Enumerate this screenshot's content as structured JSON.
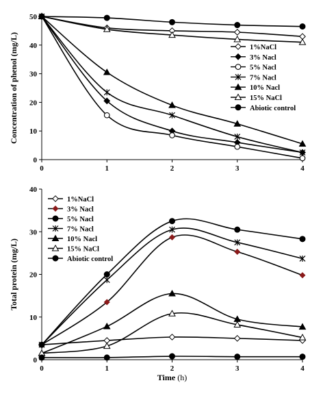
{
  "chart_data": [
    {
      "type": "line",
      "ylabel": "Concentration of phenol (mg/L)",
      "xlabel": "",
      "xlim": [
        0,
        4
      ],
      "ylim": [
        0,
        50
      ],
      "xticks": [
        "0",
        "1",
        "2",
        "3",
        "4"
      ],
      "yticks": [
        "0",
        "10",
        "20",
        "30",
        "40",
        "50"
      ],
      "grid": false,
      "legend_position": "right",
      "series": [
        {
          "name": "1%NaCl",
          "marker": "diamond-open",
          "x": [
            0,
            1,
            2,
            3,
            4
          ],
          "y": [
            50,
            46,
            45,
            44.5,
            43
          ]
        },
        {
          "name": "3% Nacl",
          "marker": "diamond-filled",
          "x": [
            0,
            1,
            2,
            3,
            4
          ],
          "y": [
            50,
            20.5,
            10,
            6,
            2.5
          ]
        },
        {
          "name": "5% Nacl",
          "marker": "circle-open",
          "x": [
            0,
            1,
            2,
            3,
            4
          ],
          "y": [
            50,
            15.5,
            8.5,
            4.5,
            0.5
          ]
        },
        {
          "name": "7% Nacl",
          "marker": "star",
          "x": [
            0,
            1,
            2,
            3,
            4
          ],
          "y": [
            50,
            23.5,
            15.5,
            8,
            2.5
          ]
        },
        {
          "name": "10% Nacl",
          "marker": "triangle-filled",
          "x": [
            0,
            1,
            2,
            3,
            4
          ],
          "y": [
            50,
            30.5,
            19,
            12.5,
            5.5
          ]
        },
        {
          "name": "15% NaCl",
          "marker": "triangle-open",
          "x": [
            0,
            1,
            2,
            3,
            4
          ],
          "y": [
            50,
            45.5,
            43.5,
            42,
            41
          ]
        },
        {
          "name": "Abiotic control",
          "marker": "circle-filled",
          "x": [
            0,
            1,
            2,
            3,
            4
          ],
          "y": [
            50,
            49.5,
            48,
            47,
            46.5
          ]
        }
      ]
    },
    {
      "type": "line",
      "ylabel": "Total protein (mg/L)",
      "xlabel_bold": "Time",
      "xlabel_unit": " (h)",
      "xlim": [
        0,
        4
      ],
      "ylim": [
        0,
        40
      ],
      "xticks": [
        "0",
        "1",
        "2",
        "3",
        "4"
      ],
      "yticks": [
        "0",
        "10",
        "20",
        "30",
        "40"
      ],
      "grid": false,
      "legend_position": "top-left",
      "series": [
        {
          "name": "1%NaCl",
          "marker": "diamond-open",
          "x": [
            0,
            1,
            2,
            3,
            4
          ],
          "y": [
            3.5,
            4.5,
            5.3,
            5,
            4.5
          ]
        },
        {
          "name": "3% Nacl",
          "marker": "diamond-red",
          "x": [
            0,
            1,
            2,
            3,
            4
          ],
          "y": [
            3.5,
            13.5,
            28.7,
            25.3,
            19.8
          ]
        },
        {
          "name": "5% Nacl",
          "marker": "circle-filled",
          "x": [
            0,
            1,
            2,
            3,
            4
          ],
          "y": [
            3.5,
            20,
            32.5,
            30.5,
            28.3
          ]
        },
        {
          "name": "7% Nacl",
          "marker": "star",
          "x": [
            0,
            1,
            2,
            3,
            4
          ],
          "y": [
            3.5,
            18.7,
            30.5,
            27.5,
            23.7
          ]
        },
        {
          "name": "10% Nacl",
          "marker": "triangle-filled",
          "x": [
            0,
            1,
            2,
            3,
            4
          ],
          "y": [
            1.5,
            7.8,
            15.5,
            9.5,
            7.7
          ]
        },
        {
          "name": "15% NaCl",
          "marker": "triangle-open",
          "x": [
            0,
            1,
            2,
            3,
            4
          ],
          "y": [
            1.5,
            3.2,
            10.8,
            8.2,
            5.2
          ]
        },
        {
          "name": "Abiotic control",
          "marker": "circle-filled",
          "x": [
            0,
            1,
            2,
            3,
            4
          ],
          "y": [
            0.5,
            0.5,
            0.8,
            0.7,
            0.7
          ]
        }
      ]
    }
  ],
  "colors": {
    "line": "#000000",
    "accent_3pct_protein": "#8b1a1a"
  }
}
